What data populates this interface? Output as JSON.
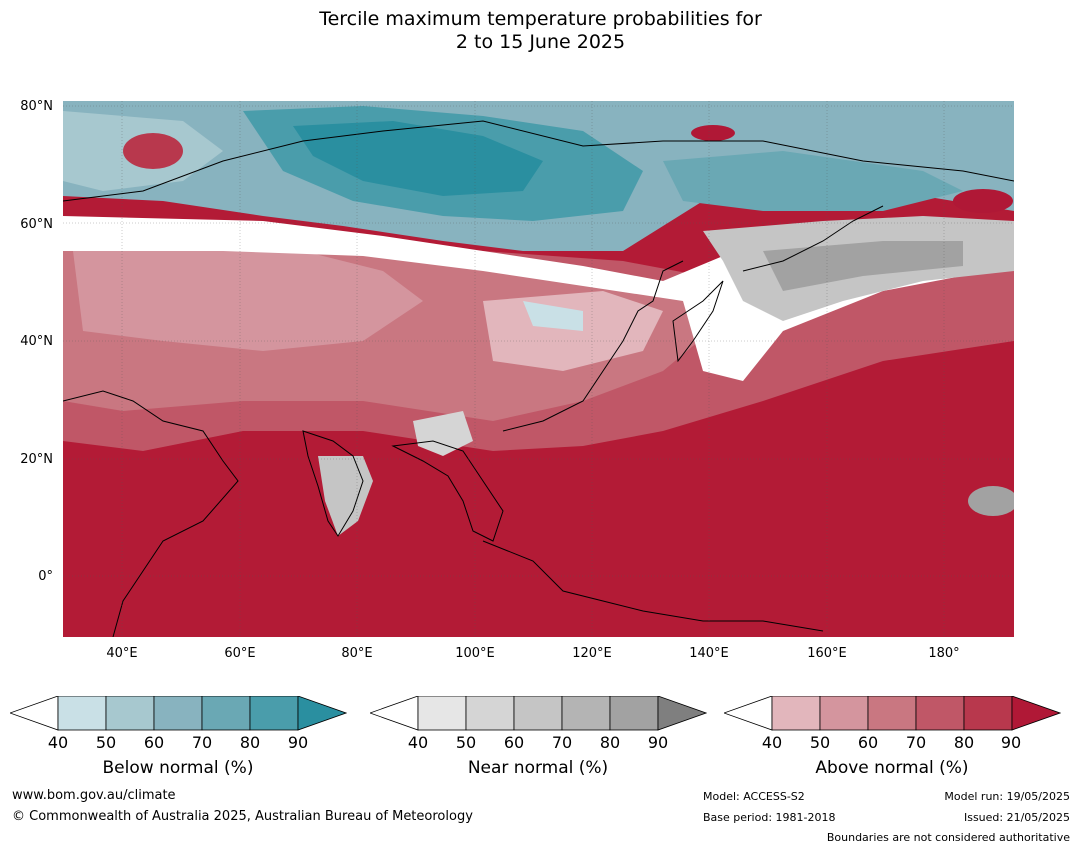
{
  "title_line1": "Tercile maximum temperature probabilities for",
  "title_line2": "2 to 15 June 2025",
  "map": {
    "lat_labels": [
      "80°N",
      "60°N",
      "40°N",
      "20°N",
      "0°"
    ],
    "lon_labels": [
      "40°E",
      "60°E",
      "80°E",
      "100°E",
      "120°E",
      "140°E",
      "160°E",
      "180°"
    ],
    "colors": {
      "above_dominant": "#b31b36",
      "ocean_dark_red": "#b31b36",
      "below_dominant": "#2f8fa0",
      "near_dominant": "#9e9e9e"
    }
  },
  "colorbars": [
    {
      "label": "Below normal (%)",
      "ticks": [
        "40",
        "50",
        "60",
        "70",
        "80",
        "90"
      ],
      "colors": [
        "#ffffff",
        "#c9e0e6",
        "#a7c8cf",
        "#88b3bf",
        "#6aa8b4",
        "#4a9dab",
        "#2a8fa0"
      ]
    },
    {
      "label": "Near normal (%)",
      "ticks": [
        "40",
        "50",
        "60",
        "70",
        "80",
        "90"
      ],
      "colors": [
        "#ffffff",
        "#e6e6e6",
        "#d5d5d5",
        "#c5c5c5",
        "#b4b4b4",
        "#a2a2a2",
        "#7f7f7f"
      ]
    },
    {
      "label": "Above normal (%)",
      "ticks": [
        "40",
        "50",
        "60",
        "70",
        "80",
        "90"
      ],
      "colors": [
        "#ffffff",
        "#e2b6bc",
        "#d4959e",
        "#c97781",
        "#c05767",
        "#b8384d",
        "#b01836"
      ]
    }
  ],
  "footer": {
    "website": "www.bom.gov.au/climate",
    "copyright": "© Commonwealth of Australia 2025, Australian Bureau of Meteorology",
    "model": "Model: ACCESS-S2",
    "base_period": "Base period: 1981-2018",
    "model_run": "Model run: 19/05/2025",
    "issued": "Issued: 21/05/2025",
    "boundaries": "Boundaries are not considered authoritative"
  }
}
